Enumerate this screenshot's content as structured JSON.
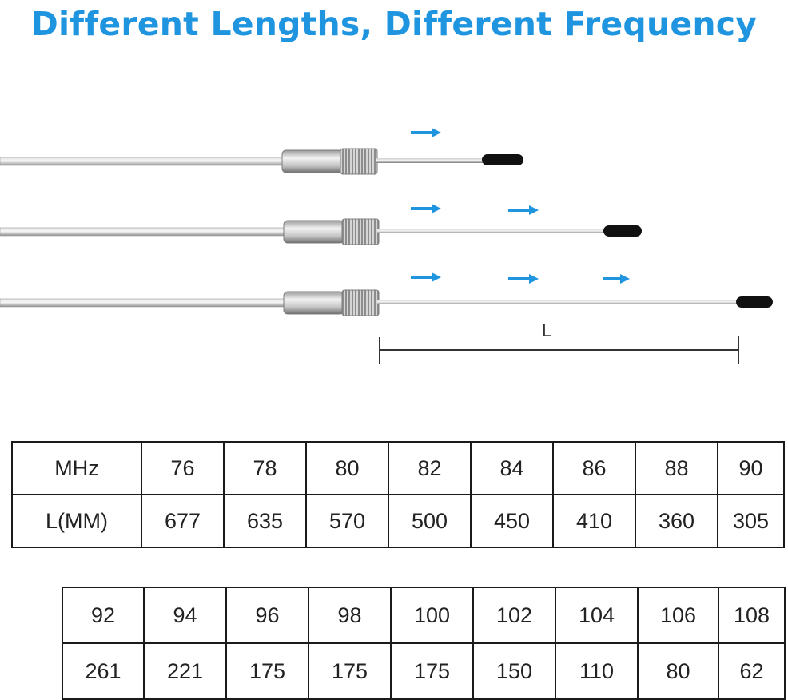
{
  "title": "Different Lengths, Different Frequency",
  "measure_label": "L",
  "colors": {
    "title": "#1f95e0",
    "arrow": "#1f95e0",
    "rod": "#b8b8b8",
    "cap": "#111111"
  },
  "table_1": {
    "row_mhz": [
      "MHz",
      "76",
      "78",
      "80",
      "82",
      "84",
      "86",
      "88",
      "90"
    ],
    "row_len": [
      "L(MM)",
      "677",
      "635",
      "570",
      "500",
      "450",
      "410",
      "360",
      "305"
    ]
  },
  "table_2": {
    "row_mhz": [
      "92",
      "94",
      "96",
      "98",
      "100",
      "102",
      "104",
      "106",
      "108"
    ],
    "row_len": [
      "261",
      "221",
      "175",
      "175",
      "175",
      "150",
      "110",
      "80",
      "62"
    ]
  }
}
